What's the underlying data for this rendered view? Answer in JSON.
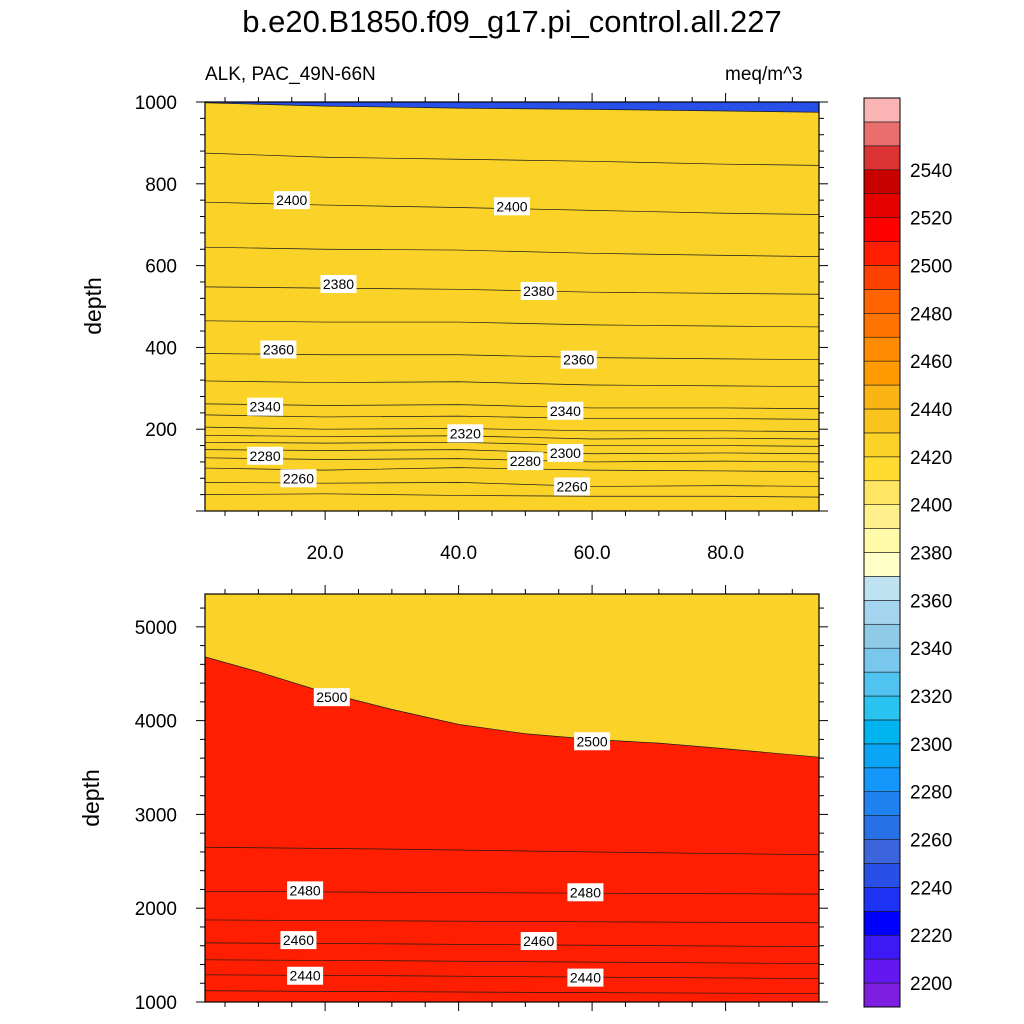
{
  "title": "b.e20.B1850.f09_g17.pi_control.all.227",
  "subtitle_left": "ALK, PAC_49N-66N",
  "subtitle_right": "meq/m^3",
  "colorbar": {
    "levels": [
      2200,
      2210,
      2220,
      2230,
      2240,
      2250,
      2260,
      2270,
      2280,
      2290,
      2300,
      2310,
      2320,
      2330,
      2340,
      2350,
      2360,
      2370,
      2380,
      2390,
      2400,
      2410,
      2420,
      2430,
      2440,
      2450,
      2460,
      2470,
      2480,
      2490,
      2500,
      2510,
      2520,
      2530,
      2540,
      2550
    ],
    "labels": [
      "2200",
      "2220",
      "2240",
      "2260",
      "2280",
      "2300",
      "2320",
      "2340",
      "2360",
      "2380",
      "2400",
      "2420",
      "2440",
      "2460",
      "2480",
      "2500",
      "2520",
      "2540"
    ],
    "colors": [
      "#7e1ee0",
      "#6418f0",
      "#3c19f5",
      "#0000ff",
      "#1e32f5",
      "#2850e8",
      "#3c64dc",
      "#2870e6",
      "#1e82f0",
      "#1496fa",
      "#0aa5f5",
      "#00b4f0",
      "#28c3f0",
      "#50c3f0",
      "#7ac7ee",
      "#8fcbe9",
      "#a5d5ee",
      "#bee2f2",
      "#ffffc8",
      "#fffaaa",
      "#fff08c",
      "#ffe664",
      "#ffdc32",
      "#fad228",
      "#fac31e",
      "#fab414",
      "#ff9b00",
      "#ff8c00",
      "#ff7300",
      "#ff6400",
      "#ff4100",
      "#ff1e00",
      "#ff0000",
      "#e60000",
      "#c80000",
      "#dc3232",
      "#eb6e6e",
      "#fab4b4"
    ]
  },
  "chart_data": [
    {
      "type": "heatmap",
      "panel": "upper",
      "title": "",
      "xlabel": "",
      "ylabel": "depth",
      "xlim": [
        2,
        94
      ],
      "ylim": [
        1000,
        0
      ],
      "x_ticks": [
        "20.0",
        "40.0",
        "60.0",
        "80.0"
      ],
      "y_ticks": [
        "200",
        "400",
        "600",
        "800",
        "1000"
      ],
      "contours": [
        {
          "level": 2250,
          "points": [
            [
              2,
              40
            ],
            [
              20,
              42
            ],
            [
              40,
              38
            ],
            [
              60,
              36
            ],
            [
              80,
              36
            ],
            [
              94,
              34
            ]
          ]
        },
        {
          "level": 2260,
          "points": [
            [
              2,
              70
            ],
            [
              20,
              68
            ],
            [
              40,
              70
            ],
            [
              60,
              60
            ],
            [
              80,
              62
            ],
            [
              94,
              60
            ]
          ]
        },
        {
          "level": 2270,
          "points": [
            [
              2,
              105
            ],
            [
              20,
              100
            ],
            [
              40,
              106
            ],
            [
              60,
              100
            ],
            [
              80,
              98
            ],
            [
              94,
              96
            ]
          ]
        },
        {
          "level": 2280,
          "points": [
            [
              2,
              130
            ],
            [
              20,
              126
            ],
            [
              40,
              128
            ],
            [
              60,
              120
            ],
            [
              80,
              122
            ],
            [
              94,
              120
            ]
          ]
        },
        {
          "level": 2290,
          "points": [
            [
              2,
              150
            ],
            [
              20,
              148
            ],
            [
              40,
              150
            ],
            [
              60,
              140
            ],
            [
              80,
              142
            ],
            [
              94,
              140
            ]
          ]
        },
        {
          "level": 2300,
          "points": [
            [
              2,
              168
            ],
            [
              20,
              166
            ],
            [
              40,
              168
            ],
            [
              60,
              160
            ],
            [
              80,
              160
            ],
            [
              94,
              158
            ]
          ]
        },
        {
          "level": 2310,
          "points": [
            [
              2,
              185
            ],
            [
              20,
              182
            ],
            [
              40,
              184
            ],
            [
              60,
              176
            ],
            [
              80,
              178
            ],
            [
              94,
              176
            ]
          ]
        },
        {
          "level": 2320,
          "points": [
            [
              2,
              205
            ],
            [
              20,
              200
            ],
            [
              40,
              202
            ],
            [
              60,
              196
            ],
            [
              80,
              196
            ],
            [
              94,
              194
            ]
          ]
        },
        {
          "level": 2330,
          "points": [
            [
              2,
              235
            ],
            [
              20,
              230
            ],
            [
              40,
              232
            ],
            [
              60,
              226
            ],
            [
              80,
              226
            ],
            [
              94,
              224
            ]
          ]
        },
        {
          "level": 2340,
          "points": [
            [
              2,
              262
            ],
            [
              20,
              258
            ],
            [
              40,
              260
            ],
            [
              60,
              252
            ],
            [
              80,
              252
            ],
            [
              94,
              250
            ]
          ]
        },
        {
          "level": 2350,
          "points": [
            [
              2,
              318
            ],
            [
              20,
              314
            ],
            [
              40,
              316
            ],
            [
              60,
              308
            ],
            [
              80,
              306
            ],
            [
              94,
              304
            ]
          ]
        },
        {
          "level": 2360,
          "points": [
            [
              2,
              385
            ],
            [
              20,
              382
            ],
            [
              40,
              382
            ],
            [
              60,
              375
            ],
            [
              80,
              372
            ],
            [
              94,
              370
            ]
          ]
        },
        {
          "level": 2370,
          "points": [
            [
              2,
              465
            ],
            [
              20,
              462
            ],
            [
              40,
              462
            ],
            [
              60,
              455
            ],
            [
              80,
              452
            ],
            [
              94,
              450
            ]
          ]
        },
        {
          "level": 2380,
          "points": [
            [
              2,
              548
            ],
            [
              20,
              545
            ],
            [
              40,
              542
            ],
            [
              60,
              535
            ],
            [
              80,
              532
            ],
            [
              94,
              530
            ]
          ]
        },
        {
          "level": 2390,
          "points": [
            [
              2,
              645
            ],
            [
              20,
              640
            ],
            [
              40,
              638
            ],
            [
              60,
              630
            ],
            [
              80,
              625
            ],
            [
              94,
              622
            ]
          ]
        },
        {
          "level": 2400,
          "points": [
            [
              2,
              755
            ],
            [
              20,
              748
            ],
            [
              40,
              742
            ],
            [
              60,
              735
            ],
            [
              80,
              728
            ],
            [
              94,
              725
            ]
          ]
        },
        {
          "level": 2410,
          "points": [
            [
              2,
              875
            ],
            [
              20,
              865
            ],
            [
              40,
              860
            ],
            [
              60,
              855
            ],
            [
              80,
              848
            ],
            [
              94,
              845
            ]
          ]
        },
        {
          "level": 2420,
          "points": [
            [
              2,
              998
            ],
            [
              20,
              990
            ],
            [
              40,
              985
            ],
            [
              60,
              982
            ],
            [
              80,
              978
            ],
            [
              94,
              975
            ]
          ]
        }
      ],
      "contour_labels": [
        {
          "text": "2260",
          "x": 16,
          "y": 80
        },
        {
          "text": "2260",
          "x": 57,
          "y": 60
        },
        {
          "text": "2280",
          "x": 11,
          "y": 135
        },
        {
          "text": "2280",
          "x": 50,
          "y": 122
        },
        {
          "text": "2300",
          "x": 56,
          "y": 142
        },
        {
          "text": "2320",
          "x": 41,
          "y": 190
        },
        {
          "text": "2340",
          "x": 11,
          "y": 255
        },
        {
          "text": "2340",
          "x": 56,
          "y": 245
        },
        {
          "text": "2360",
          "x": 13,
          "y": 395
        },
        {
          "text": "2360",
          "x": 58,
          "y": 370
        },
        {
          "text": "2380",
          "x": 22,
          "y": 555
        },
        {
          "text": "2380",
          "x": 52,
          "y": 538
        },
        {
          "text": "2400",
          "x": 15,
          "y": 760
        },
        {
          "text": "2400",
          "x": 48,
          "y": 745
        }
      ]
    },
    {
      "type": "heatmap",
      "panel": "lower",
      "title": "",
      "xlabel": "",
      "ylabel": "depth",
      "xlim": [
        2,
        94
      ],
      "ylim": [
        5350,
        1000
      ],
      "y_ticks": [
        "1000",
        "2000",
        "3000",
        "4000",
        "5000"
      ],
      "contours": [
        {
          "level": 2430,
          "points": [
            [
              2,
              1120
            ],
            [
              30,
              1110
            ],
            [
              60,
              1100
            ],
            [
              94,
              1090
            ]
          ]
        },
        {
          "level": 2440,
          "points": [
            [
              2,
              1290
            ],
            [
              30,
              1280
            ],
            [
              60,
              1265
            ],
            [
              94,
              1250
            ]
          ]
        },
        {
          "level": 2450,
          "points": [
            [
              2,
              1450
            ],
            [
              30,
              1440
            ],
            [
              60,
              1425
            ],
            [
              94,
              1410
            ]
          ]
        },
        {
          "level": 2460,
          "points": [
            [
              2,
              1630
            ],
            [
              30,
              1620
            ],
            [
              60,
              1605
            ],
            [
              94,
              1590
            ]
          ]
        },
        {
          "level": 2470,
          "points": [
            [
              2,
              1875
            ],
            [
              30,
              1865
            ],
            [
              60,
              1855
            ],
            [
              94,
              1845
            ]
          ]
        },
        {
          "level": 2480,
          "points": [
            [
              2,
              2180
            ],
            [
              30,
              2170
            ],
            [
              60,
              2160
            ],
            [
              94,
              2150
            ]
          ]
        },
        {
          "level": 2490,
          "points": [
            [
              2,
              2650
            ],
            [
              30,
              2630
            ],
            [
              60,
              2600
            ],
            [
              94,
              2570
            ]
          ]
        },
        {
          "level": 2500,
          "points": [
            [
              2,
              4680
            ],
            [
              10,
              4520
            ],
            [
              20,
              4300
            ],
            [
              30,
              4120
            ],
            [
              40,
              3960
            ],
            [
              50,
              3860
            ],
            [
              60,
              3800
            ],
            [
              70,
              3760
            ],
            [
              80,
              3700
            ],
            [
              94,
              3610
            ]
          ]
        }
      ],
      "contour_labels": [
        {
          "text": "2440",
          "x": 17,
          "y": 1280
        },
        {
          "text": "2440",
          "x": 59,
          "y": 1260
        },
        {
          "text": "2460",
          "x": 16,
          "y": 1660
        },
        {
          "text": "2460",
          "x": 52,
          "y": 1650
        },
        {
          "text": "2480",
          "x": 17,
          "y": 2190
        },
        {
          "text": "2480",
          "x": 59,
          "y": 2170
        },
        {
          "text": "2500",
          "x": 21,
          "y": 4250
        },
        {
          "text": "2500",
          "x": 60,
          "y": 3780
        }
      ]
    }
  ]
}
